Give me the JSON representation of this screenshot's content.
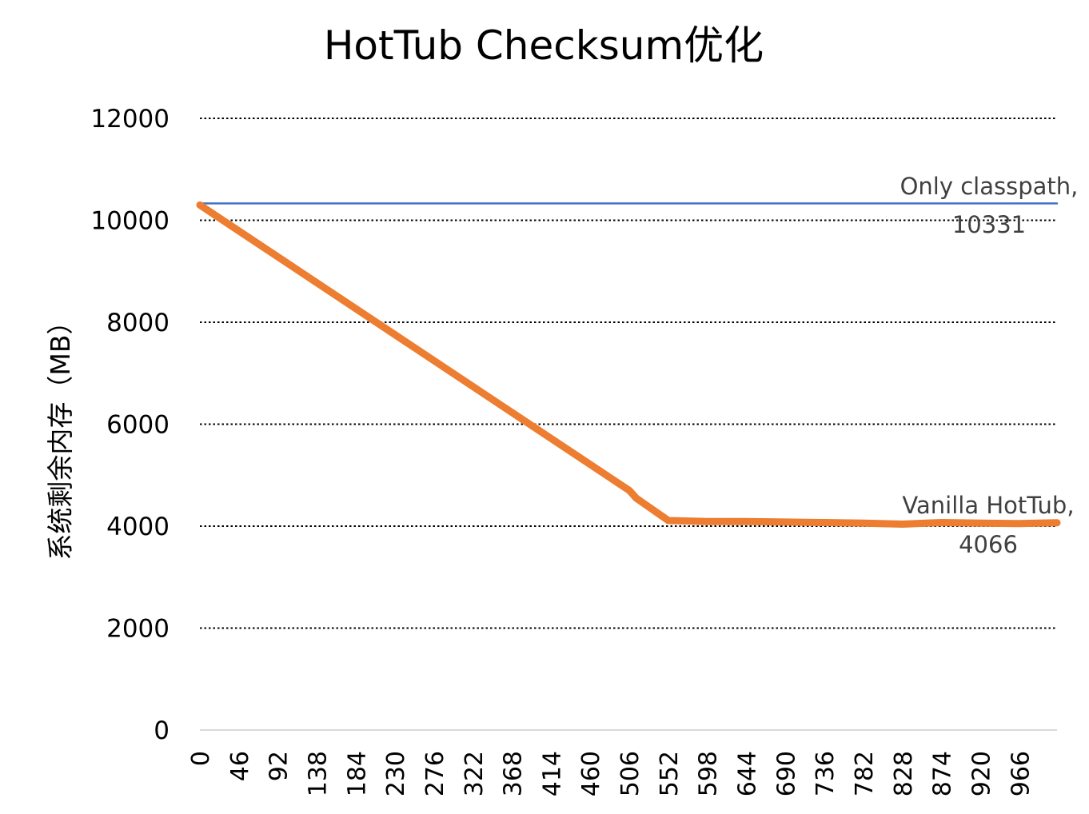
{
  "chart_data": {
    "type": "line",
    "title": "HotTub Checksum优化",
    "xlabel": "",
    "ylabel": "系统剩余内存（MB）",
    "ylim": [
      0,
      12000
    ],
    "yticks": [
      "0",
      "2000",
      "4000",
      "6000",
      "8000",
      "10000",
      "12000"
    ],
    "xlim": [
      0,
      1010
    ],
    "xticks": [
      "0",
      "46",
      "92",
      "138",
      "184",
      "230",
      "276",
      "322",
      "368",
      "414",
      "460",
      "506",
      "552",
      "598",
      "644",
      "690",
      "736",
      "782",
      "828",
      "874",
      "920",
      "966"
    ],
    "grid": "horizontal dotted",
    "series": [
      {
        "name": "Only classpath",
        "color": "#4472C4",
        "x": [
          0,
          1010
        ],
        "y": [
          10331,
          10331
        ],
        "label_value": "10331"
      },
      {
        "name": "Vanilla HotTub",
        "color": "#ED7D31",
        "x": [
          0,
          506,
          514,
          552,
          598,
          644,
          690,
          736,
          782,
          828,
          874,
          920,
          966,
          1010
        ],
        "y": [
          10300,
          4700,
          4550,
          4110,
          4090,
          4090,
          4080,
          4070,
          4060,
          4040,
          4070,
          4060,
          4050,
          4066
        ],
        "label_value": "4066"
      }
    ],
    "labels": [
      {
        "series": "Only classpath",
        "line1": "Only classpath,",
        "line2": "10331"
      },
      {
        "series": "Vanilla HotTub",
        "line1": "Vanilla HotTub,",
        "line2": "4066"
      }
    ]
  }
}
